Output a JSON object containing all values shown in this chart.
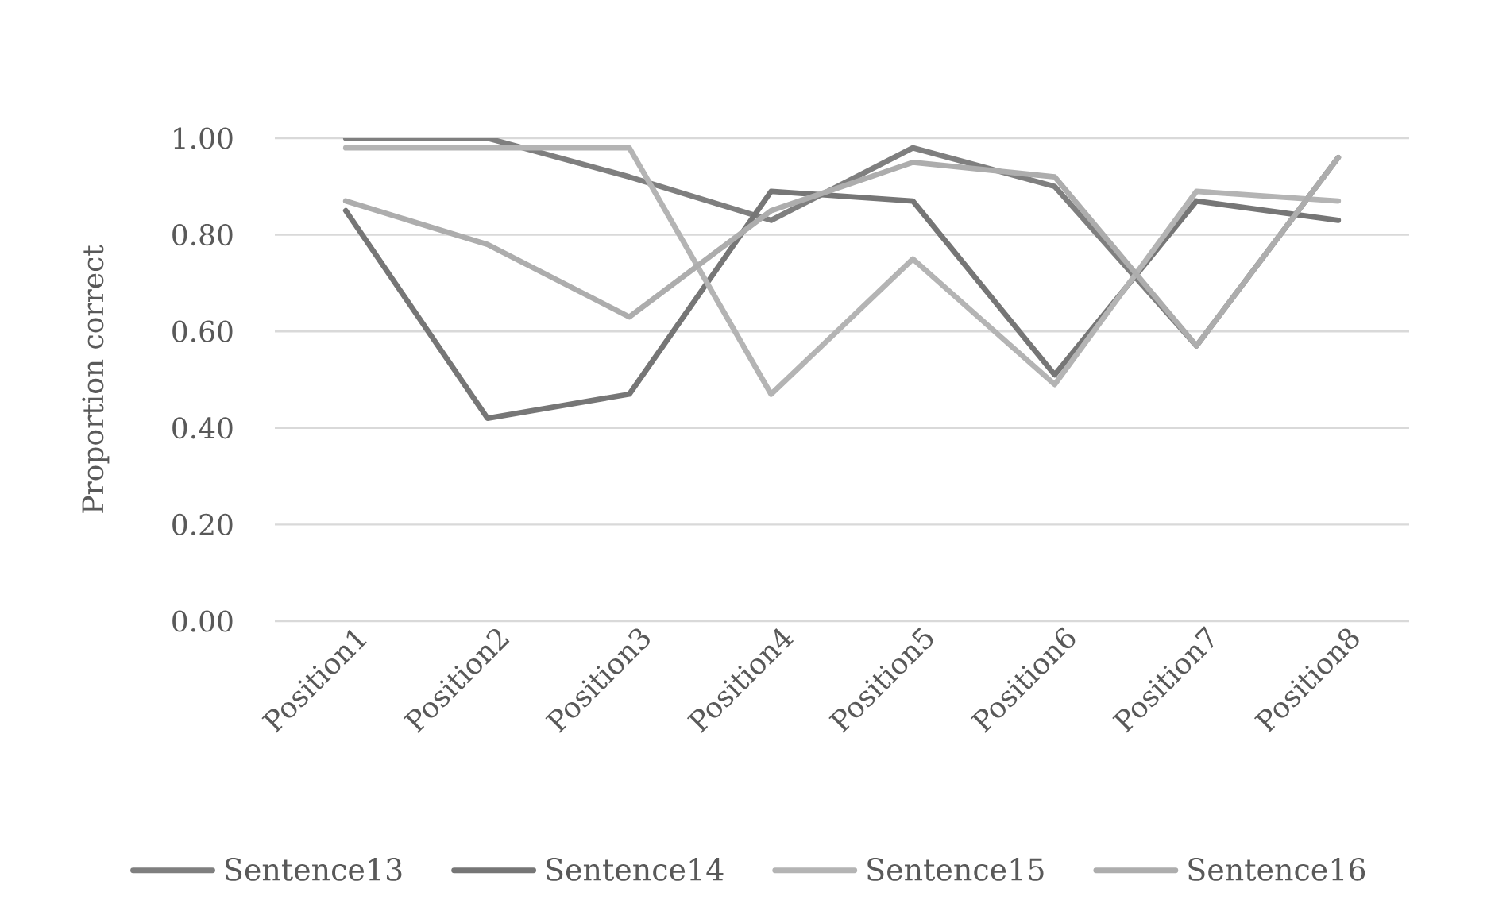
{
  "chart_data": {
    "type": "line",
    "ylabel": "Proportion correct",
    "categories": [
      "Position1",
      "Position2",
      "Position3",
      "Position4",
      "Position5",
      "Position6",
      "Position7",
      "Position8"
    ],
    "series": [
      {
        "name": "Sentence13",
        "color": "#7f7f7f",
        "values": [
          1.0,
          1.0,
          0.92,
          0.83,
          0.98,
          0.9,
          0.57,
          0.96
        ]
      },
      {
        "name": "Sentence14",
        "color": "#767676",
        "values": [
          0.85,
          0.42,
          0.47,
          0.89,
          0.87,
          0.51,
          0.87,
          0.83
        ]
      },
      {
        "name": "Sentence15",
        "color": "#b4b4b4",
        "values": [
          0.98,
          0.98,
          0.98,
          0.47,
          0.75,
          0.49,
          0.89,
          0.87
        ]
      },
      {
        "name": "Sentence16",
        "color": "#adadad",
        "values": [
          0.87,
          0.78,
          0.63,
          0.85,
          0.95,
          0.92,
          0.57,
          0.96
        ]
      }
    ],
    "ylim": [
      0,
      1
    ],
    "yticks": [
      {
        "value": 0,
        "label": "0.00"
      },
      {
        "value": 0.2,
        "label": "0.20"
      },
      {
        "value": 0.4,
        "label": "0.40"
      },
      {
        "value": 0.6,
        "label": "0.60"
      },
      {
        "value": 0.8,
        "label": "0.80"
      },
      {
        "value": 1,
        "label": "1.00"
      }
    ],
    "grid": "y",
    "legend": "bottom"
  }
}
